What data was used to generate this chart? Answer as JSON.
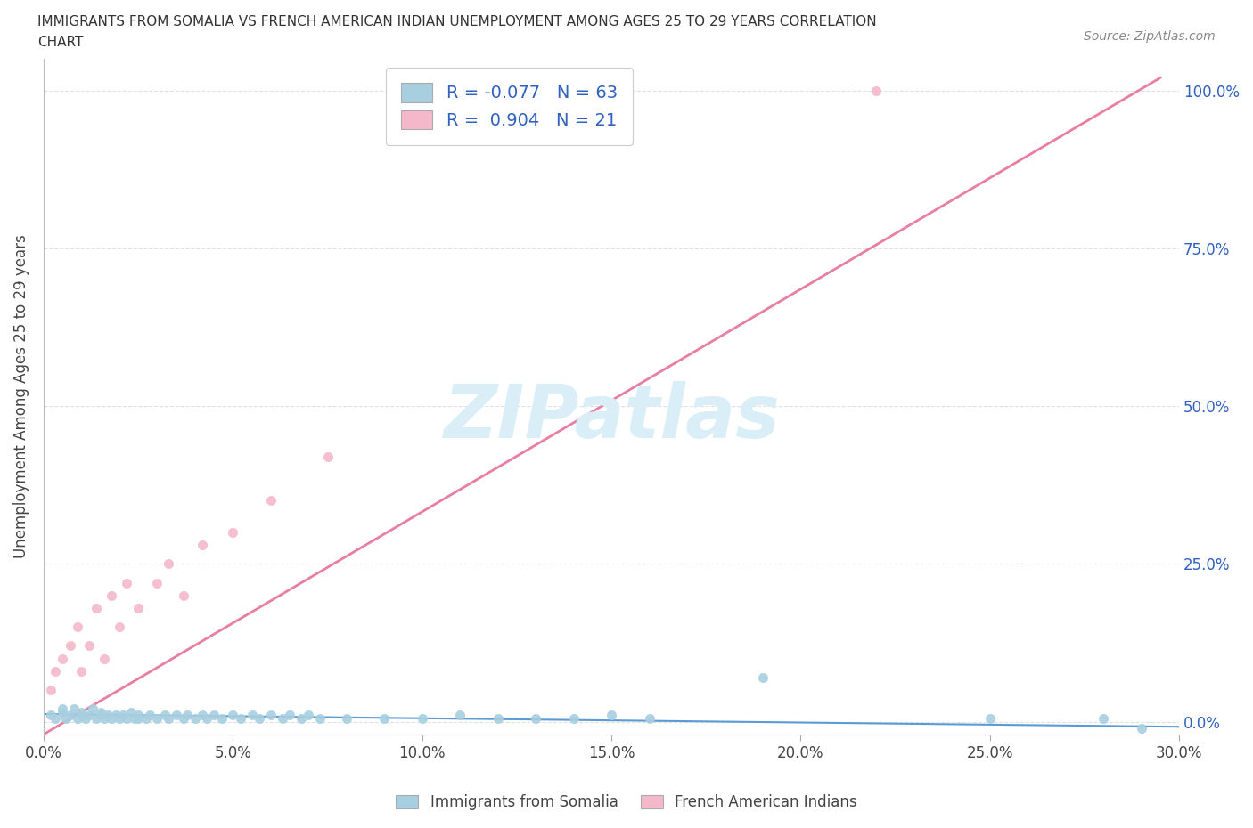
{
  "title_line1": "IMMIGRANTS FROM SOMALIA VS FRENCH AMERICAN INDIAN UNEMPLOYMENT AMONG AGES 25 TO 29 YEARS CORRELATION",
  "title_line2": "CHART",
  "source_text": "Source: ZipAtlas.com",
  "ylabel": "Unemployment Among Ages 25 to 29 years",
  "xlabel_ticks": [
    "0.0%",
    "5.0%",
    "10.0%",
    "15.0%",
    "20.0%",
    "25.0%",
    "30.0%"
  ],
  "ylabel_ticks_right": [
    "100.0%",
    "75.0%",
    "50.0%",
    "25.0%",
    "0.0%"
  ],
  "xlim": [
    0.0,
    0.3
  ],
  "ylim": [
    -0.02,
    1.05
  ],
  "blue_R": -0.077,
  "blue_N": 63,
  "pink_R": 0.904,
  "pink_N": 21,
  "blue_color": "#a8cfe0",
  "pink_color": "#f5b8cb",
  "blue_line_color": "#5b9bd5",
  "pink_line_color": "#e87fa0",
  "watermark_color": "#daeef8",
  "legend_label_blue": "Immigrants from Somalia",
  "legend_label_pink": "French American Indians",
  "grid_color": "#cccccc",
  "background_color": "#ffffff",
  "tick_label_color": "#3060c0",
  "blue_dots_x": [
    0.002,
    0.003,
    0.005,
    0.005,
    0.006,
    0.007,
    0.008,
    0.009,
    0.01,
    0.01,
    0.011,
    0.012,
    0.013,
    0.014,
    0.015,
    0.015,
    0.016,
    0.017,
    0.018,
    0.019,
    0.02,
    0.021,
    0.022,
    0.023,
    0.024,
    0.025,
    0.025,
    0.027,
    0.028,
    0.03,
    0.032,
    0.033,
    0.035,
    0.037,
    0.038,
    0.04,
    0.042,
    0.043,
    0.045,
    0.047,
    0.05,
    0.052,
    0.055,
    0.057,
    0.06,
    0.063,
    0.065,
    0.068,
    0.07,
    0.073,
    0.08,
    0.09,
    0.1,
    0.11,
    0.12,
    0.13,
    0.14,
    0.15,
    0.16,
    0.19,
    0.25,
    0.28,
    0.29
  ],
  "blue_dots_y": [
    0.01,
    0.005,
    0.015,
    0.02,
    0.005,
    0.01,
    0.02,
    0.005,
    0.01,
    0.015,
    0.005,
    0.01,
    0.02,
    0.005,
    0.01,
    0.015,
    0.005,
    0.01,
    0.005,
    0.01,
    0.005,
    0.01,
    0.005,
    0.015,
    0.005,
    0.01,
    0.005,
    0.005,
    0.01,
    0.005,
    0.01,
    0.005,
    0.01,
    0.005,
    0.01,
    0.005,
    0.01,
    0.005,
    0.01,
    0.005,
    0.01,
    0.005,
    0.01,
    0.005,
    0.01,
    0.005,
    0.01,
    0.005,
    0.01,
    0.005,
    0.005,
    0.005,
    0.005,
    0.01,
    0.005,
    0.005,
    0.005,
    0.01,
    0.005,
    0.07,
    0.005,
    0.005,
    -0.01
  ],
  "pink_dots_x": [
    0.002,
    0.003,
    0.005,
    0.007,
    0.009,
    0.01,
    0.012,
    0.014,
    0.016,
    0.018,
    0.02,
    0.022,
    0.025,
    0.03,
    0.033,
    0.037,
    0.042,
    0.05,
    0.06,
    0.075,
    0.22
  ],
  "pink_dots_y": [
    0.05,
    0.08,
    0.1,
    0.12,
    0.15,
    0.08,
    0.12,
    0.18,
    0.1,
    0.2,
    0.15,
    0.22,
    0.18,
    0.22,
    0.25,
    0.2,
    0.28,
    0.3,
    0.35,
    0.42,
    1.0
  ],
  "pink_line_x0": 0.0,
  "pink_line_y0": -0.02,
  "pink_line_x1": 0.295,
  "pink_line_y1": 1.02,
  "blue_line_x0": 0.0,
  "blue_line_y0": 0.012,
  "blue_line_x1": 0.3,
  "blue_line_y1": -0.008
}
